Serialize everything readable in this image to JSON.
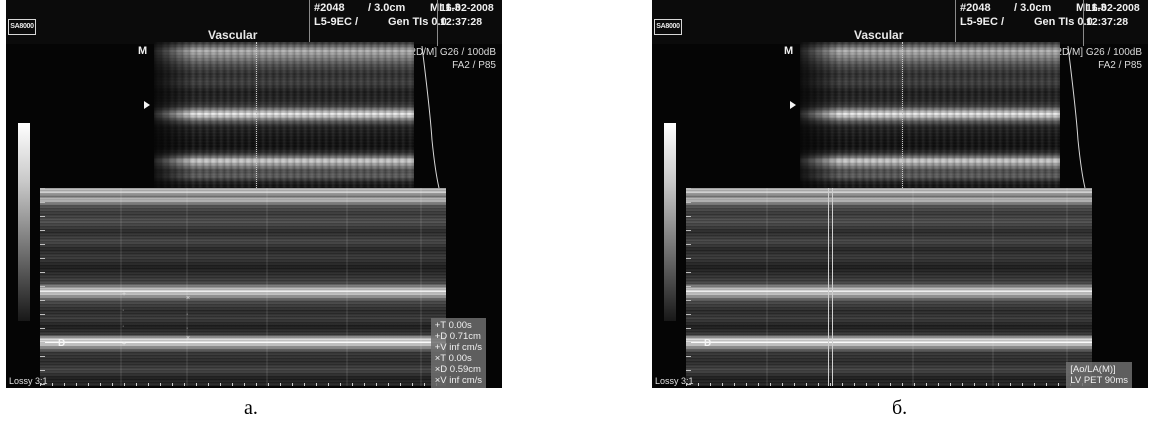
{
  "panels": [
    {
      "id": "a",
      "logo": "SA8000",
      "mode": "Vascular",
      "header": {
        "frame": "#2048",
        "depth": "/ 3.0cm",
        "mi": "MI  1.3",
        "date": "16-02-2008",
        "probe": "L5-9EC /",
        "tis": "Gen  TIs 0.0",
        "time": "12:37:28"
      },
      "params": [
        "[2D/M]  G26 / 100dB",
        "FA2 / P85"
      ],
      "m_marker": "M",
      "d_marker": "D",
      "lossy": "Lossy 3:1",
      "measurements": [
        "+T 0.00s",
        "+D 0.71cm",
        "+V inf cm/s",
        "×T 0.00s",
        "×D 0.59cm",
        "×V inf cm/s"
      ],
      "caption": "а."
    },
    {
      "id": "b",
      "logo": "SA8000",
      "mode": "Vascular",
      "header": {
        "frame": "#2048",
        "depth": "/ 3.0cm",
        "mi": "MI  1.3",
        "date": "16-02-2008",
        "probe": "L5-9EC /",
        "tis": "Gen  TIs 0.0",
        "time": "12:37:28"
      },
      "params": [
        "[2D/M]  G26 / 100dB",
        "FA2 / P85"
      ],
      "m_marker": "M",
      "d_marker": "D",
      "lossy": "Lossy 3:1",
      "measurements": [
        "[Ao/LA(M)]",
        "LV PET 90ms"
      ],
      "caption": "б."
    }
  ]
}
